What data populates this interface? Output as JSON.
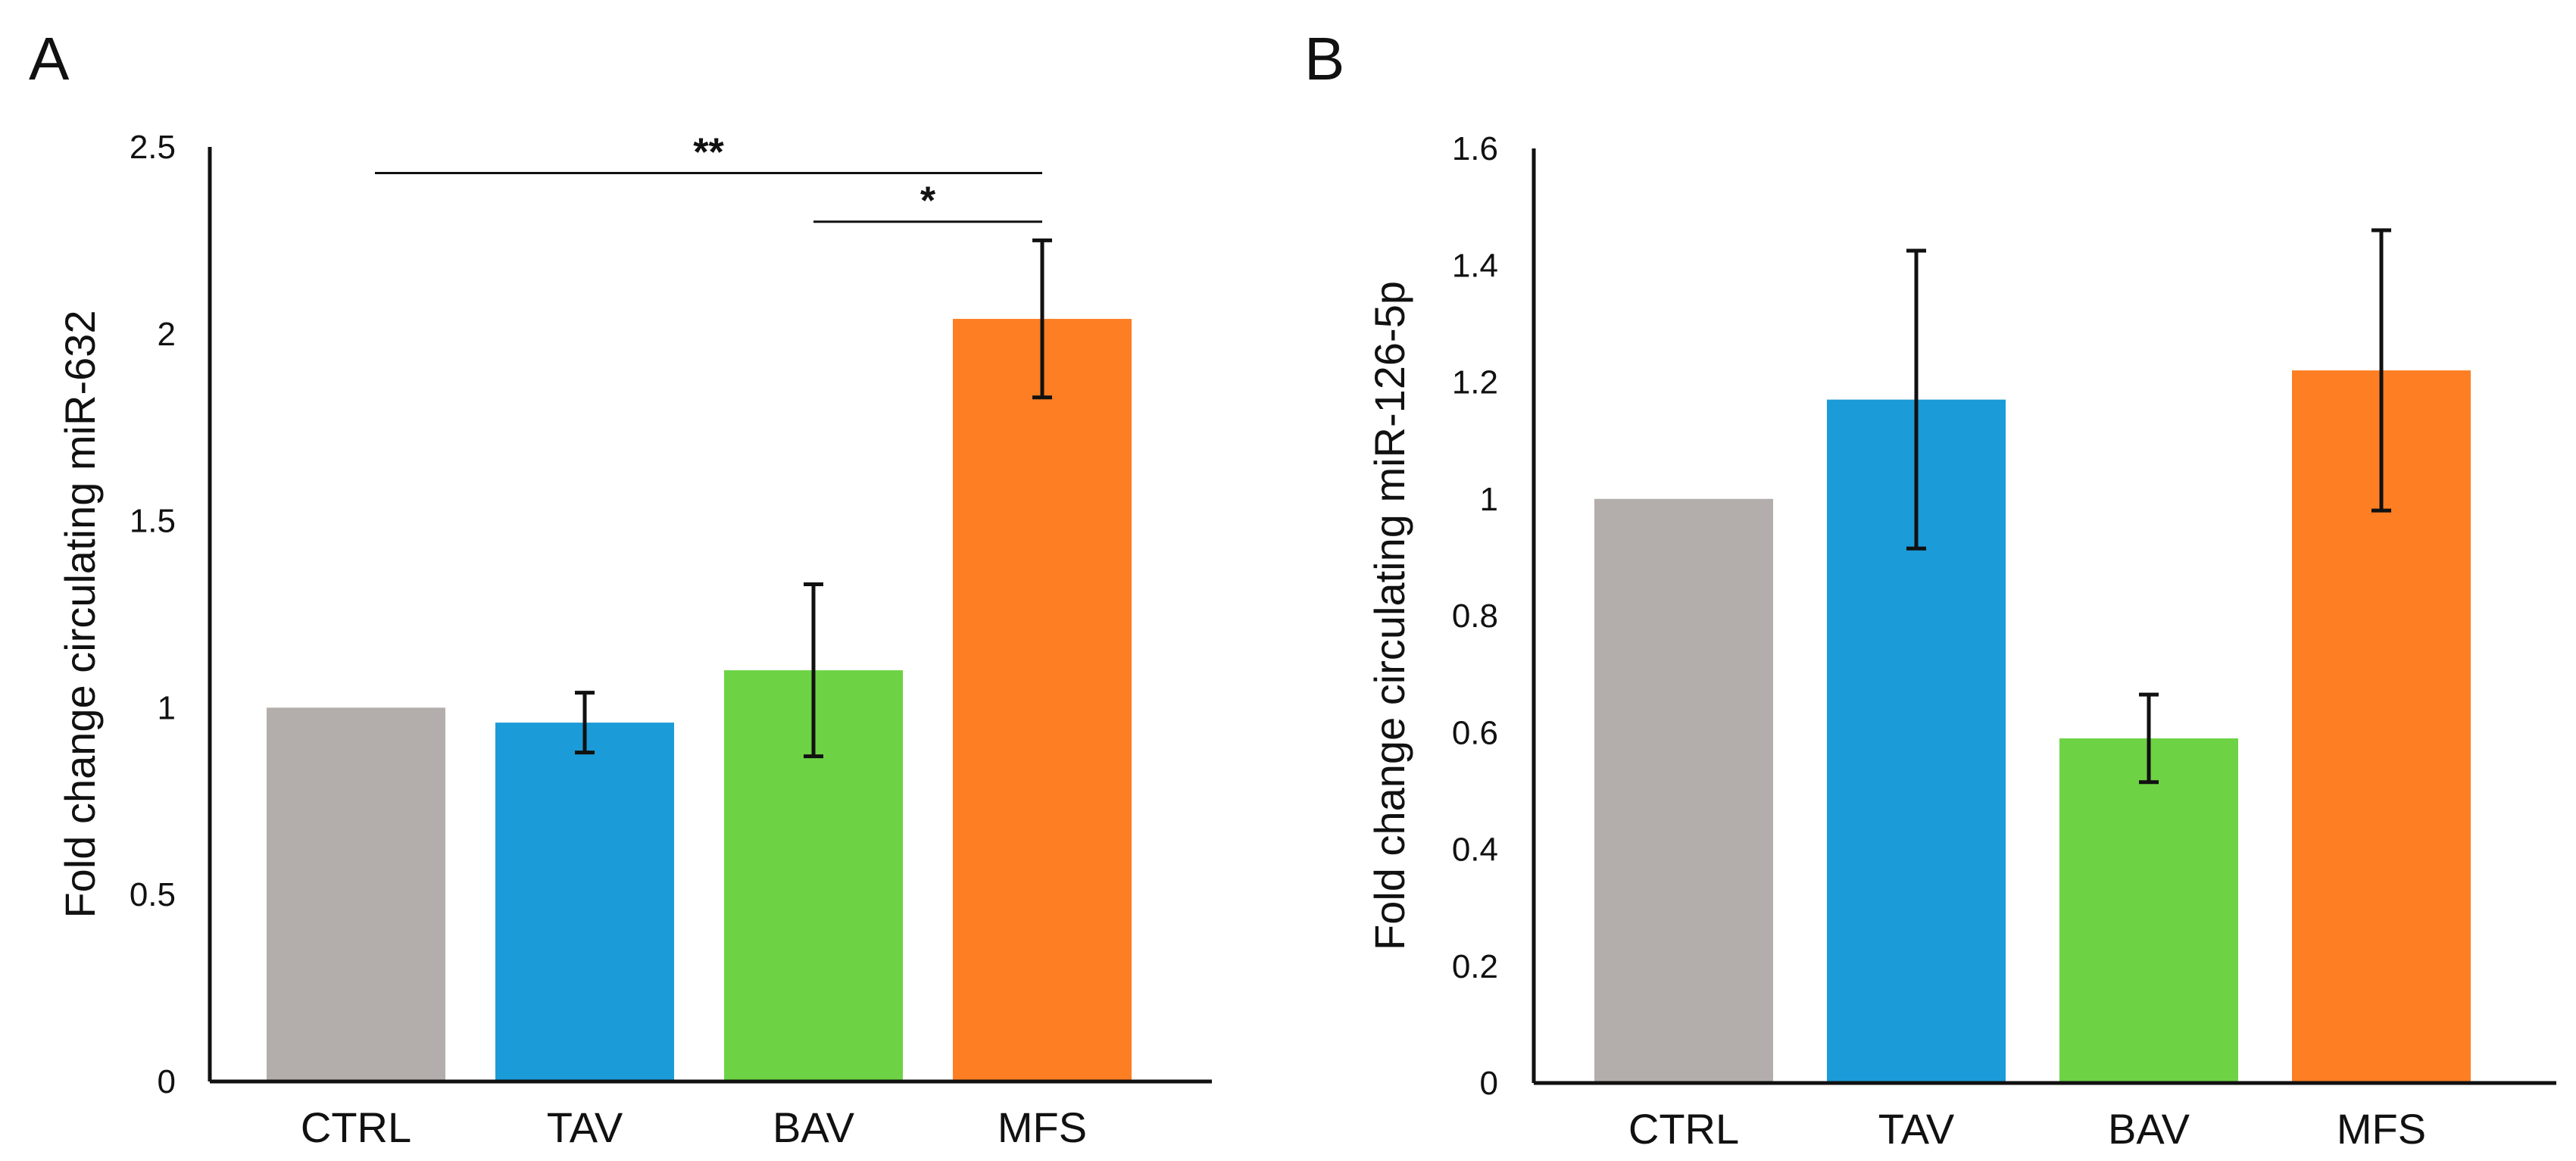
{
  "chart_data": [
    {
      "type": "bar",
      "panel_label": "A",
      "categories": [
        "CTRL",
        "TAV",
        "BAV",
        "MFS"
      ],
      "values": [
        1.0,
        0.96,
        1.1,
        2.04
      ],
      "errors": [
        0,
        0.08,
        0.23,
        0.21
      ],
      "colors": [
        "#b3aeab",
        "#1b9bd7",
        "#6dd345",
        "#fd7e23"
      ],
      "ylabel": "Fold change circulating miR-632",
      "xlabel": "",
      "ylim": [
        0,
        2.5
      ],
      "yticks": [
        0,
        0.5,
        1,
        1.5,
        2,
        2.5
      ],
      "ytick_labels": [
        "0",
        "0.5",
        "1",
        "1.5",
        "2",
        "2.5"
      ],
      "significance": [
        {
          "from": "CTRL",
          "to": "MFS",
          "label": "**",
          "y": 2.43
        },
        {
          "from": "BAV",
          "to": "MFS",
          "label": "*",
          "y": 2.3
        }
      ]
    },
    {
      "type": "bar",
      "panel_label": "B",
      "categories": [
        "CTRL",
        "TAV",
        "BAV",
        "MFS"
      ],
      "values": [
        1.0,
        1.17,
        0.59,
        1.22
      ],
      "errors": [
        0,
        0.255,
        0.075,
        0.24
      ],
      "colors": [
        "#b3aeab",
        "#1b9bd7",
        "#6dd345",
        "#fd7e23"
      ],
      "ylabel": "Fold change circulating miR-126-5p",
      "xlabel": "",
      "ylim": [
        0,
        1.6
      ],
      "yticks": [
        0,
        0.2,
        0.4,
        0.6,
        0.8,
        1,
        1.2,
        1.4,
        1.6
      ],
      "ytick_labels": [
        "0",
        "0.2",
        "0.4",
        "0.6",
        "0.8",
        "1",
        "1.2",
        "1.4",
        "1.6"
      ],
      "significance": []
    }
  ]
}
